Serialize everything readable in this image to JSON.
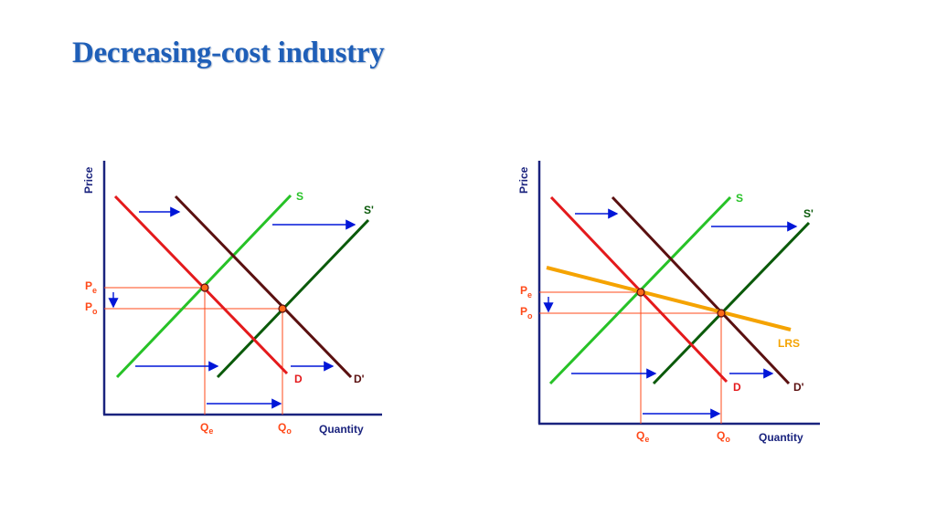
{
  "title": "Decreasing-cost industry",
  "colors": {
    "title": "#1F5FB8",
    "axis": "#1a237e",
    "axis_text": "#1a237e",
    "demand": "#e41a1c",
    "demand_shifted": "#5a1010",
    "supply": "#27c227",
    "supply_shifted": "#0a5a0a",
    "lrs": "#f5a300",
    "guides": "#ff4a1a",
    "arrows": "#0016d8",
    "eq_point": "#ff6a1a"
  },
  "diagrams": [
    {
      "id": "left",
      "has_lrs": false,
      "labels": {
        "y_axis": "Price",
        "x_axis": "Quantity",
        "supply": "S",
        "supply_shifted": "S'",
        "demand": "D",
        "demand_shifted": "D'",
        "pe": "P",
        "pe_sub": "e",
        "po": "P",
        "po_sub": "o",
        "qe": "Q",
        "qe_sub": "e",
        "qo": "Q",
        "qo_sub": "o"
      }
    },
    {
      "id": "right",
      "has_lrs": true,
      "labels": {
        "y_axis": "Price",
        "x_axis": "Quantity",
        "supply": "S",
        "supply_shifted": "S'",
        "demand": "D",
        "demand_shifted": "D'",
        "lrs": "LRS",
        "pe": "P",
        "pe_sub": "e",
        "po": "P",
        "po_sub": "o",
        "qe": "Q",
        "qe_sub": "e",
        "qo": "Q",
        "qo_sub": "o"
      }
    }
  ]
}
